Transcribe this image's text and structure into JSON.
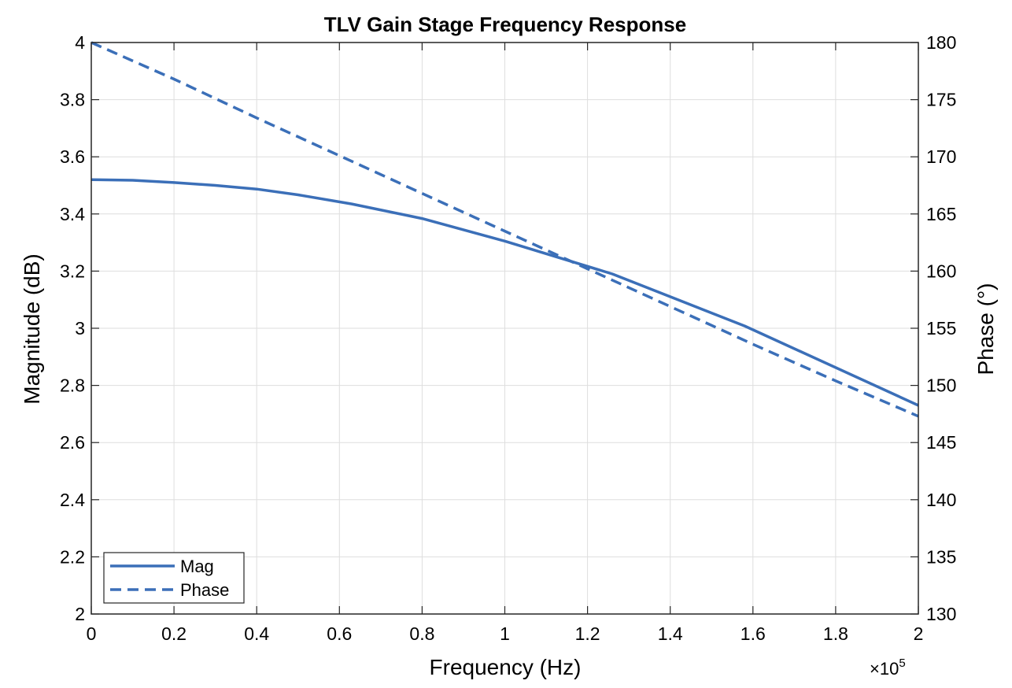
{
  "chart_data": {
    "type": "line",
    "title": "TLV Gain Stage Frequency Response",
    "xlabel": "Frequency (Hz)",
    "ylabel_left": "Magnitude (dB)",
    "ylabel_right": "Phase (°)",
    "x_exponent_label": "×10",
    "x_exponent_power": "5",
    "xlim": [
      0,
      200000
    ],
    "ylim_left": [
      2,
      4
    ],
    "ylim_right": [
      130,
      180
    ],
    "x_ticks": [
      0,
      20000,
      40000,
      60000,
      80000,
      100000,
      120000,
      140000,
      160000,
      180000,
      200000
    ],
    "x_tick_labels": [
      "0",
      "0.2",
      "0.4",
      "0.6",
      "0.8",
      "1",
      "1.2",
      "1.4",
      "1.6",
      "1.8",
      "2"
    ],
    "y_left_ticks": [
      2,
      2.2,
      2.4,
      2.6,
      2.8,
      3,
      3.2,
      3.4,
      3.6,
      3.8,
      4
    ],
    "y_left_tick_labels": [
      "2",
      "2.2",
      "2.4",
      "2.6",
      "2.8",
      "3",
      "3.2",
      "3.4",
      "3.6",
      "3.8",
      "4"
    ],
    "y_right_ticks": [
      130,
      135,
      140,
      145,
      150,
      155,
      160,
      165,
      170,
      175,
      180
    ],
    "y_right_tick_labels": [
      "130",
      "135",
      "140",
      "145",
      "150",
      "155",
      "160",
      "165",
      "170",
      "175",
      "180"
    ],
    "grid": true,
    "legend_position": "bottom-left",
    "line_color": "#3b6fb8",
    "series": [
      {
        "name": "Mag",
        "axis": "left",
        "style": "solid",
        "x": [
          0,
          10000,
          20000,
          30000,
          40000,
          50000,
          63000,
          80000,
          100000,
          126000,
          158000,
          200000
        ],
        "y": [
          3.52,
          3.518,
          3.51,
          3.5,
          3.487,
          3.467,
          3.435,
          3.384,
          3.305,
          3.19,
          3.008,
          2.73
        ]
      },
      {
        "name": "Phase",
        "axis": "right",
        "style": "dashed",
        "x": [
          0,
          20000,
          40000,
          60000,
          80000,
          100000,
          120000,
          140000,
          160000,
          180000,
          200000
        ],
        "y": [
          180,
          176.8,
          173.4,
          170.1,
          166.8,
          163.5,
          160.2,
          156.9,
          153.6,
          150.4,
          147.3
        ]
      }
    ]
  }
}
